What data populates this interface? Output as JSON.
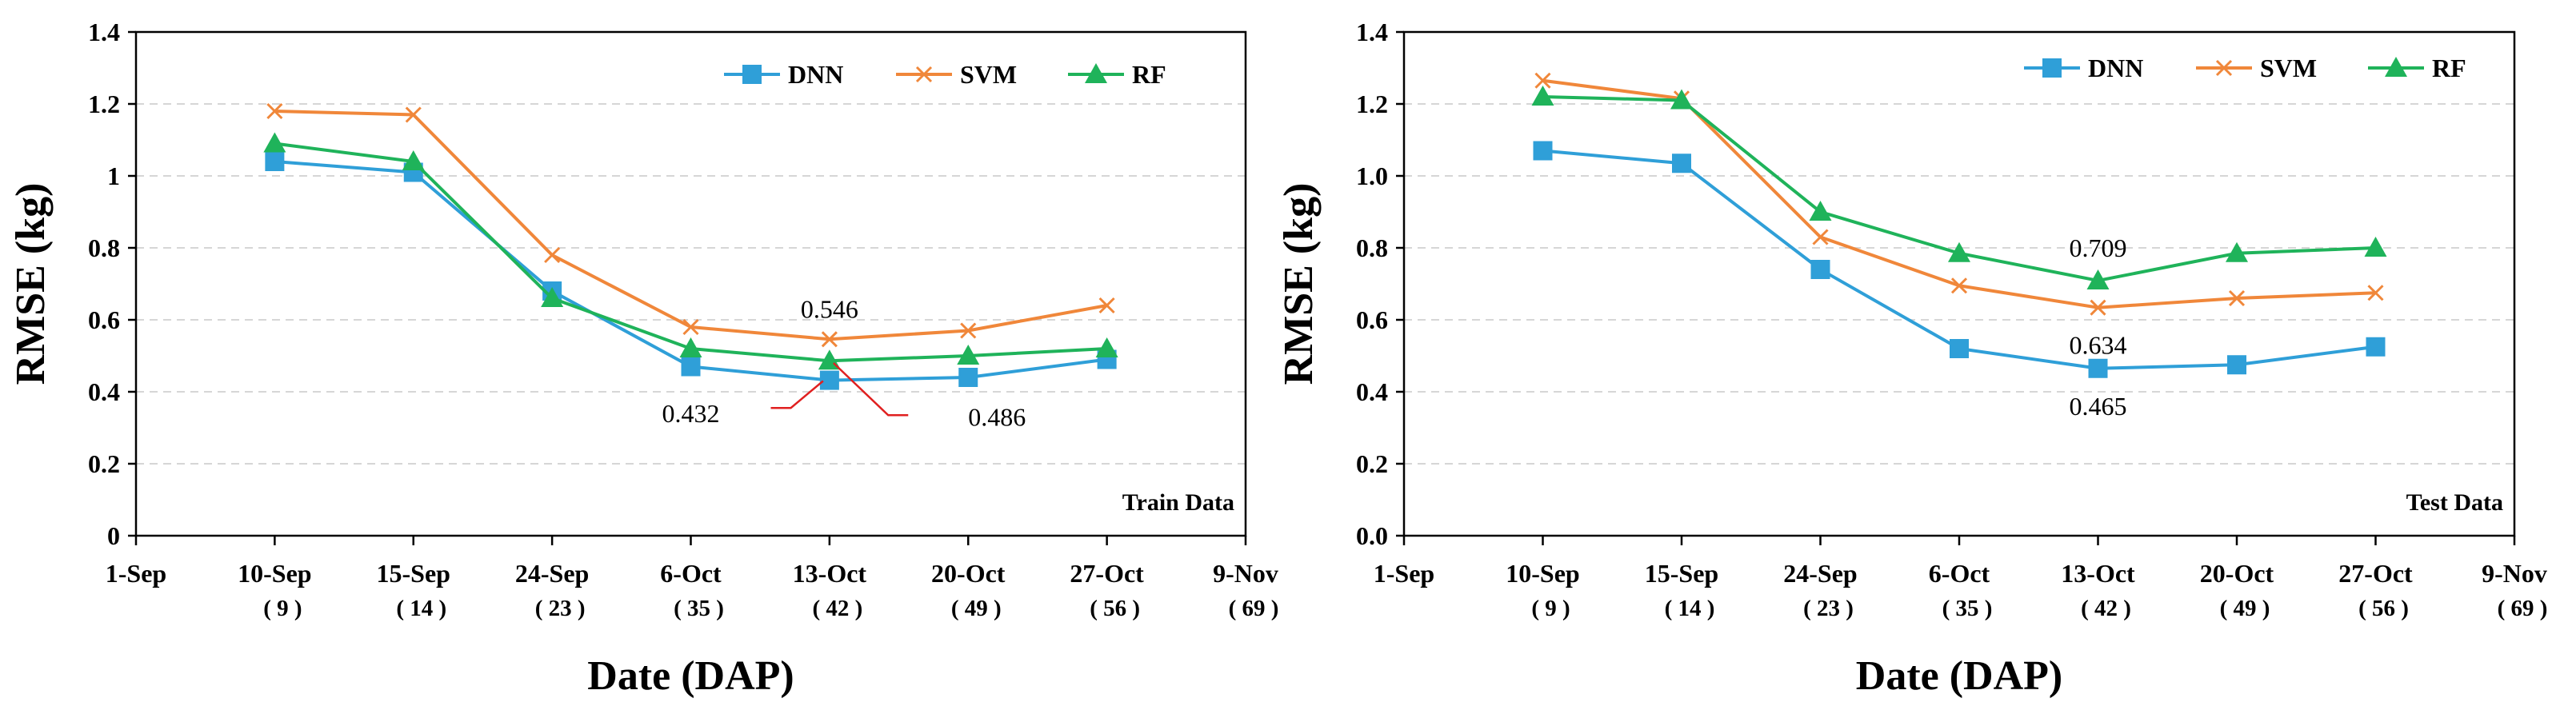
{
  "chart_data": [
    {
      "type": "line",
      "xlabel": "Date (DAP)",
      "ylabel": "RMSE (kg)",
      "panel_label": "Train Data",
      "ylim": [
        0,
        1.4
      ],
      "yticks": [
        "0",
        "0.2",
        "0.4",
        "0.6",
        "0.8",
        "1",
        "1.2",
        "1.4"
      ],
      "ytick_values": [
        0,
        0.2,
        0.4,
        0.6,
        0.8,
        1.0,
        1.2,
        1.4
      ],
      "grid": true,
      "legend_position": "top-right",
      "x_ticks": [
        {
          "date": "1-Sep",
          "dap": ""
        },
        {
          "date": "10-Sep",
          "dap": "( 9 )"
        },
        {
          "date": "15-Sep",
          "dap": "( 14 )"
        },
        {
          "date": "24-Sep",
          "dap": "( 23 )"
        },
        {
          "date": "6-Oct",
          "dap": "( 35 )"
        },
        {
          "date": "13-Oct",
          "dap": "( 42 )"
        },
        {
          "date": "20-Oct",
          "dap": "( 49 )"
        },
        {
          "date": "27-Oct",
          "dap": "( 56 )"
        },
        {
          "date": "9-Nov",
          "dap": "( 69 )"
        }
      ],
      "x_points": [
        "10-Sep",
        "15-Sep",
        "24-Sep",
        "6-Oct",
        "13-Oct",
        "20-Oct",
        "27-Oct"
      ],
      "series": [
        {
          "name": "DNN",
          "color": "#2f9fd8",
          "marker": "square",
          "values": [
            1.04,
            1.01,
            0.68,
            0.47,
            0.432,
            0.44,
            0.49
          ]
        },
        {
          "name": "SVM",
          "color": "#f0873a",
          "marker": "x",
          "values": [
            1.18,
            1.17,
            0.78,
            0.58,
            0.546,
            0.57,
            0.64
          ]
        },
        {
          "name": "RF",
          "color": "#1fb35a",
          "marker": "triangle",
          "values": [
            1.09,
            1.04,
            0.66,
            0.52,
            0.486,
            0.5,
            0.52
          ]
        }
      ],
      "annotations": [
        {
          "text": "0.546",
          "x": "13-Oct",
          "y": 0.63,
          "anchor": "middle"
        },
        {
          "text": "0.432",
          "x": "6-Oct",
          "y": 0.34,
          "anchor": "middle"
        },
        {
          "text": "0.486",
          "x": "20-Oct",
          "y": 0.33,
          "anchor": "start"
        }
      ]
    },
    {
      "type": "line",
      "xlabel": "Date (DAP)",
      "ylabel": "RMSE (kg)",
      "panel_label": "Test Data",
      "ylim": [
        0,
        1.4
      ],
      "yticks": [
        "0.0",
        "0.2",
        "0.4",
        "0.6",
        "0.8",
        "1.0",
        "1.2",
        "1.4"
      ],
      "ytick_values": [
        0,
        0.2,
        0.4,
        0.6,
        0.8,
        1.0,
        1.2,
        1.4
      ],
      "grid": true,
      "legend_position": "top-right",
      "x_ticks": [
        {
          "date": "1-Sep",
          "dap": ""
        },
        {
          "date": "10-Sep",
          "dap": "( 9 )"
        },
        {
          "date": "15-Sep",
          "dap": "( 14 )"
        },
        {
          "date": "24-Sep",
          "dap": "( 23 )"
        },
        {
          "date": "6-Oct",
          "dap": "( 35 )"
        },
        {
          "date": "13-Oct",
          "dap": "( 42 )"
        },
        {
          "date": "20-Oct",
          "dap": "( 49 )"
        },
        {
          "date": "27-Oct",
          "dap": "( 56 )"
        },
        {
          "date": "9-Nov",
          "dap": "( 69 )"
        }
      ],
      "x_points": [
        "10-Sep",
        "15-Sep",
        "24-Sep",
        "6-Oct",
        "13-Oct",
        "20-Oct",
        "27-Oct"
      ],
      "series": [
        {
          "name": "DNN",
          "color": "#2f9fd8",
          "marker": "square",
          "values": [
            1.07,
            1.035,
            0.74,
            0.52,
            0.465,
            0.475,
            0.525
          ]
        },
        {
          "name": "SVM",
          "color": "#f0873a",
          "marker": "x",
          "values": [
            1.265,
            1.215,
            0.83,
            0.695,
            0.634,
            0.66,
            0.675
          ]
        },
        {
          "name": "RF",
          "color": "#1fb35a",
          "marker": "triangle",
          "values": [
            1.22,
            1.21,
            0.9,
            0.785,
            0.709,
            0.785,
            0.8
          ]
        }
      ],
      "annotations": [
        {
          "text": "0.709",
          "x": "13-Oct",
          "y": 0.8,
          "anchor": "middle"
        },
        {
          "text": "0.634",
          "x": "13-Oct",
          "y": 0.53,
          "anchor": "middle"
        },
        {
          "text": "0.465",
          "x": "13-Oct",
          "y": 0.36,
          "anchor": "middle"
        }
      ]
    }
  ]
}
